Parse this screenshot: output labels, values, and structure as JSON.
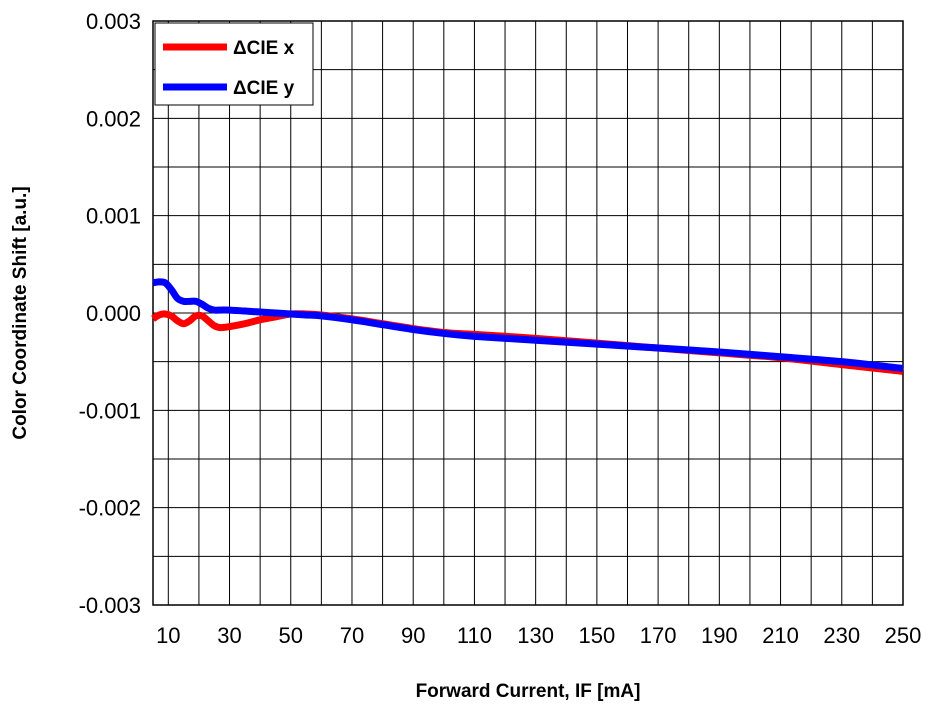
{
  "chart_data": {
    "type": "line",
    "xlabel": "Forward Current, IF [mA]",
    "ylabel": "Color Coordinate Shift [a.u.]",
    "xlim": [
      5,
      250
    ],
    "ylim": [
      -0.003,
      0.003
    ],
    "x_ticks": [
      10,
      30,
      50,
      70,
      90,
      110,
      130,
      150,
      170,
      190,
      210,
      230,
      250
    ],
    "y_ticks": [
      0.003,
      0.002,
      0.001,
      0.0,
      -0.001,
      -0.002,
      -0.003
    ],
    "y_tick_labels": [
      "0.003",
      "0.002",
      "0.001",
      "0.000",
      "-0.001",
      "-0.002",
      "-0.003"
    ],
    "x_grid_step": 10,
    "y_grid_step": 0.0005,
    "grid": true,
    "legend_position": "top-left",
    "series": [
      {
        "name": "ΔCIE x",
        "color": "#ff0000",
        "x": [
          5,
          7,
          9,
          11,
          13,
          15,
          17,
          19,
          21,
          23,
          25,
          27,
          30,
          35,
          40,
          45,
          50,
          55,
          60,
          70,
          80,
          90,
          100,
          110,
          130,
          150,
          170,
          190,
          210,
          230,
          250
        ],
        "y": [
          -6e-05,
          -2e-05,
          -1e-05,
          -3e-05,
          -8e-05,
          -0.00011,
          -8e-05,
          -3e-05,
          -3e-05,
          -8e-05,
          -0.00013,
          -0.00015,
          -0.00014,
          -0.00011,
          -7e-05,
          -4e-05,
          -1e-05,
          -1e-05,
          -2e-05,
          -6e-05,
          -0.00011,
          -0.00016,
          -0.0002,
          -0.00022,
          -0.00026,
          -0.00031,
          -0.00036,
          -0.00041,
          -0.00046,
          -0.00053,
          -0.0006
        ]
      },
      {
        "name": "ΔCIE y",
        "color": "#0000ff",
        "x": [
          5,
          7,
          9,
          11,
          13,
          15,
          17,
          19,
          21,
          23,
          25,
          27,
          30,
          35,
          40,
          45,
          50,
          55,
          60,
          70,
          80,
          90,
          100,
          110,
          130,
          150,
          170,
          190,
          210,
          230,
          250
        ],
        "y": [
          0.00031,
          0.00032,
          0.00031,
          0.00024,
          0.00015,
          0.00012,
          0.00012,
          0.00012,
          9e-05,
          5e-05,
          3e-05,
          3e-05,
          3e-05,
          2e-05,
          1e-05,
          0.0,
          -1e-05,
          -2e-05,
          -3e-05,
          -7e-05,
          -0.00012,
          -0.00017,
          -0.00021,
          -0.00024,
          -0.00028,
          -0.00032,
          -0.00036,
          -0.0004,
          -0.00045,
          -0.0005,
          -0.00057
        ]
      }
    ]
  }
}
